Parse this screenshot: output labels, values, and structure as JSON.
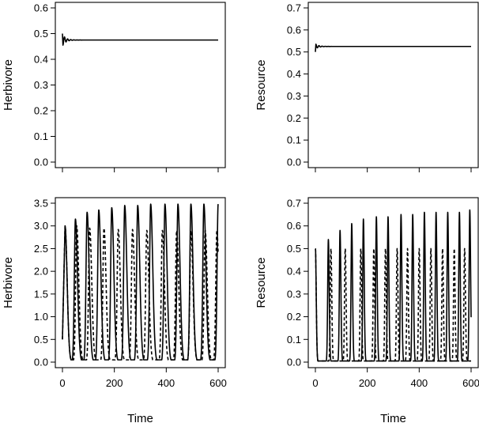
{
  "chart_data": [
    {
      "type": "line",
      "xlabel": "",
      "ylabel": "Herbivore",
      "xlim": [
        0,
        600
      ],
      "ylim": [
        0,
        0.6
      ],
      "xticks": [
        0,
        200,
        400,
        600
      ],
      "show_xtick_labels": false,
      "yticks": [
        0.0,
        0.1,
        0.2,
        0.3,
        0.4,
        0.5,
        0.6
      ],
      "ytick_labels": [
        "0.0",
        "0.1",
        "0.2",
        "0.3",
        "0.4",
        "0.5",
        "0.6"
      ],
      "dynamics": {
        "kind": "damped",
        "start": 0.5,
        "equilibrium": 0.475,
        "first_swing": 0.455,
        "damping_time": 12,
        "period": 12
      },
      "series": [
        {
          "style": "solid"
        }
      ]
    },
    {
      "type": "line",
      "xlabel": "",
      "ylabel": "Resource",
      "xlim": [
        0,
        600
      ],
      "ylim": [
        0,
        0.7
      ],
      "xticks": [
        0,
        200,
        400,
        600
      ],
      "show_xtick_labels": false,
      "yticks": [
        0.0,
        0.1,
        0.2,
        0.3,
        0.4,
        0.5,
        0.6,
        0.7
      ],
      "ytick_labels": [
        "0.0",
        "0.1",
        "0.2",
        "0.3",
        "0.4",
        "0.5",
        "0.6",
        "0.7"
      ],
      "dynamics": {
        "kind": "damped",
        "start": 0.5,
        "equilibrium": 0.525,
        "first_swing": 0.535,
        "damping_time": 12,
        "period": 12
      },
      "series": [
        {
          "style": "solid"
        }
      ]
    },
    {
      "type": "line",
      "xlabel": "Time",
      "ylabel": "Herbivore",
      "xlim": [
        0,
        600
      ],
      "ylim": [
        0,
        3.5
      ],
      "xticks": [
        0,
        200,
        400,
        600
      ],
      "xtick_labels": [
        "0",
        "200",
        "400",
        "600"
      ],
      "show_xtick_labels": true,
      "yticks": [
        0.0,
        0.5,
        1.0,
        1.5,
        2.0,
        2.5,
        3.0,
        3.5
      ],
      "ytick_labels": [
        "0.0",
        "0.5",
        "1.0",
        "1.5",
        "2.0",
        "2.5",
        "3.0",
        "3.5"
      ],
      "series": [
        {
          "style": "solid",
          "start": 0.5,
          "peak_times": [
            10,
            50,
            95,
            140,
            190,
            240,
            290,
            340,
            395,
            445,
            495,
            545,
            600
          ],
          "peak_values": [
            3.0,
            3.15,
            3.3,
            3.35,
            3.4,
            3.45,
            3.45,
            3.48,
            3.48,
            3.48,
            3.48,
            3.48,
            3.48
          ],
          "trough": 0.05,
          "end": 1.7
        },
        {
          "style": "dashed",
          "start": 0.5,
          "peak_times": [
            10,
            55,
            105,
            160,
            215,
            270,
            325,
            385,
            440,
            495,
            550,
            595
          ],
          "peak_values": [
            3.0,
            3.0,
            2.95,
            2.95,
            2.92,
            2.92,
            2.9,
            2.9,
            2.9,
            2.9,
            2.9,
            2.9
          ],
          "trough": 0.05,
          "end": 1.1
        }
      ]
    },
    {
      "type": "line",
      "xlabel": "Time",
      "ylabel": "Resource",
      "xlim": [
        0,
        600
      ],
      "ylim": [
        0,
        0.7
      ],
      "xticks": [
        0,
        200,
        400,
        600
      ],
      "xtick_labels": [
        "0",
        "200",
        "400",
        "600"
      ],
      "show_xtick_labels": true,
      "yticks": [
        0.0,
        0.1,
        0.2,
        0.3,
        0.4,
        0.5,
        0.6,
        0.7
      ],
      "ytick_labels": [
        "0.0",
        "0.1",
        "0.2",
        "0.3",
        "0.4",
        "0.5",
        "0.6",
        "0.7"
      ],
      "series": [
        {
          "style": "solid",
          "start": 0.5,
          "peak_times": [
            0,
            50,
            95,
            140,
            185,
            235,
            280,
            330,
            375,
            420,
            465,
            510,
            555,
            595
          ],
          "peak_values": [
            0.5,
            0.54,
            0.58,
            0.61,
            0.63,
            0.64,
            0.64,
            0.65,
            0.65,
            0.66,
            0.66,
            0.66,
            0.66,
            0.67
          ],
          "trough": 0.005,
          "end": 0.1
        },
        {
          "style": "dashed",
          "start": 0.5,
          "peak_times": [
            0,
            60,
            115,
            175,
            225,
            270,
            315,
            355,
            400,
            445,
            490,
            535,
            575
          ],
          "peak_values": [
            0.5,
            0.5,
            0.5,
            0.5,
            0.5,
            0.5,
            0.5,
            0.5,
            0.5,
            0.5,
            0.5,
            0.5,
            0.5
          ],
          "trough": 0.005,
          "end": 0.1
        }
      ]
    }
  ]
}
